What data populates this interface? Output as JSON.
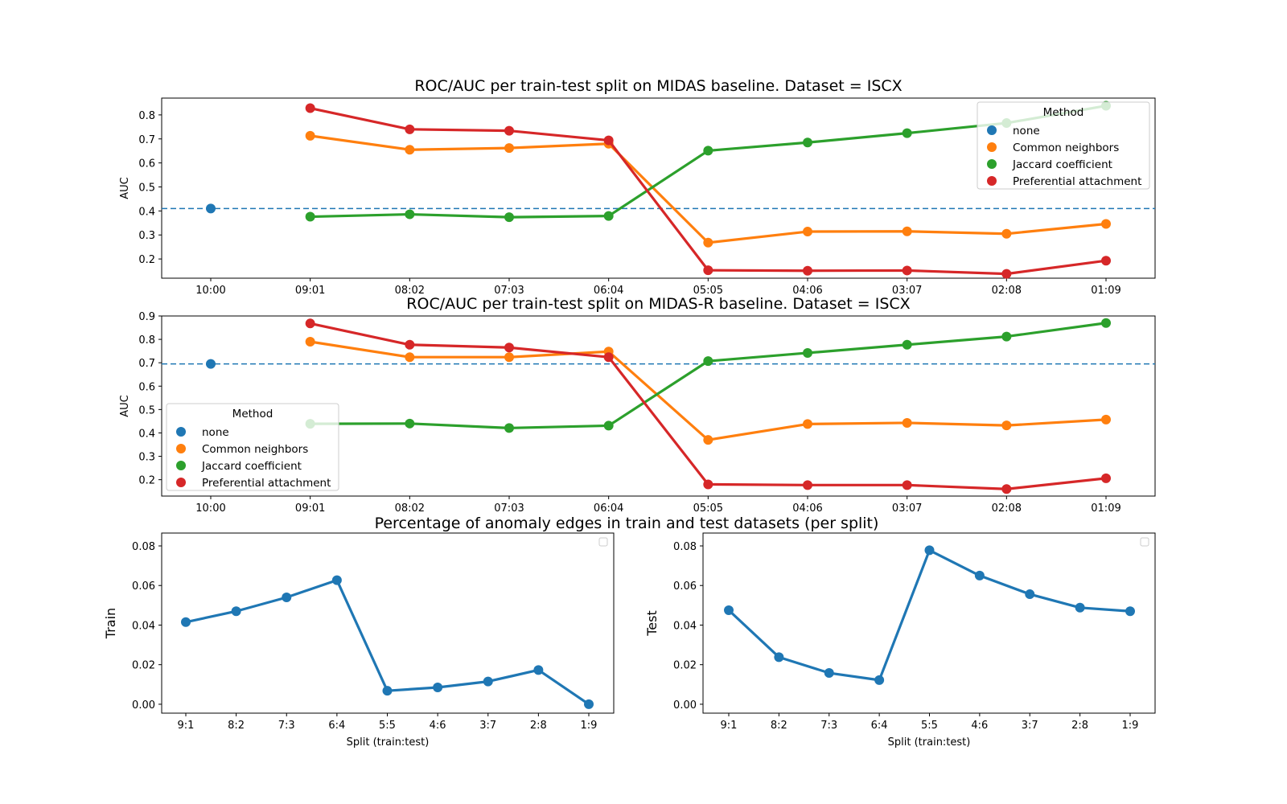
{
  "figure_titles": {
    "bottom_suptitle": "Percentage of anomaly edges in train and test datasets (per split)"
  },
  "colors": {
    "none": "#1f77b4",
    "Common neighbors": "#ff7f0e",
    "Jaccard coefficient": "#2ca02c",
    "Preferential attachment": "#d62728"
  },
  "chart_data": [
    {
      "id": "midas",
      "type": "line",
      "title": "ROC/AUC per train-test split on MIDAS baseline. Dataset = ISCX",
      "xlabel": "",
      "ylabel": "AUC",
      "categories": [
        "10:00",
        "09:01",
        "08:02",
        "07:03",
        "06:04",
        "05:05",
        "04:06",
        "03:07",
        "02:08",
        "01:09"
      ],
      "ylim": [
        0.12,
        0.87
      ],
      "yticks": [
        "0.2",
        "0.3",
        "0.4",
        "0.5",
        "0.6",
        "0.7",
        "0.8"
      ],
      "baseline": {
        "name": "none",
        "value": 0.41,
        "style": "dashed"
      },
      "legend": {
        "title": "Method",
        "position": "upper right",
        "entries": [
          "none",
          "Common neighbors",
          "Jaccard coefficient",
          "Preferential attachment"
        ]
      },
      "series": [
        {
          "name": "none",
          "values": [
            0.41,
            null,
            null,
            null,
            null,
            null,
            null,
            null,
            null,
            null
          ]
        },
        {
          "name": "Common neighbors",
          "values": [
            null,
            0.713,
            0.655,
            0.662,
            0.68,
            0.268,
            0.314,
            0.315,
            0.305,
            0.346
          ]
        },
        {
          "name": "Jaccard coefficient",
          "values": [
            null,
            0.376,
            0.386,
            0.374,
            0.379,
            0.651,
            0.685,
            0.724,
            0.766,
            0.838
          ]
        },
        {
          "name": "Preferential attachment",
          "values": [
            null,
            0.828,
            0.74,
            0.734,
            0.694,
            0.153,
            0.151,
            0.152,
            0.138,
            0.193
          ]
        }
      ]
    },
    {
      "id": "midas_r",
      "type": "line",
      "title": "ROC/AUC per train-test split on MIDAS-R baseline. Dataset = ISCX",
      "xlabel": "",
      "ylabel": "AUC",
      "categories": [
        "10:00",
        "09:01",
        "08:02",
        "07:03",
        "06:04",
        "05:05",
        "04:06",
        "03:07",
        "02:08",
        "01:09"
      ],
      "ylim": [
        0.13,
        0.9
      ],
      "yticks": [
        "0.2",
        "0.3",
        "0.4",
        "0.5",
        "0.6",
        "0.7",
        "0.8",
        "0.9"
      ],
      "baseline": {
        "name": "none",
        "value": 0.695,
        "style": "dashed"
      },
      "legend": {
        "title": "Method",
        "position": "lower left",
        "entries": [
          "none",
          "Common neighbors",
          "Jaccard coefficient",
          "Preferential attachment"
        ]
      },
      "series": [
        {
          "name": "none",
          "values": [
            0.695,
            null,
            null,
            null,
            null,
            null,
            null,
            null,
            null,
            null
          ]
        },
        {
          "name": "Common neighbors",
          "values": [
            null,
            0.79,
            0.724,
            0.724,
            0.748,
            0.37,
            0.438,
            0.443,
            0.432,
            0.457
          ]
        },
        {
          "name": "Jaccard coefficient",
          "values": [
            null,
            0.439,
            0.44,
            0.421,
            0.431,
            0.707,
            0.742,
            0.777,
            0.812,
            0.87
          ]
        },
        {
          "name": "Preferential attachment",
          "values": [
            null,
            0.868,
            0.777,
            0.765,
            0.724,
            0.18,
            0.177,
            0.177,
            0.16,
            0.206
          ]
        }
      ]
    },
    {
      "id": "train",
      "type": "line",
      "title": "",
      "xlabel": "Split (train:test)",
      "ylabel": "Train",
      "categories": [
        "9:1",
        "8:2",
        "7:3",
        "6:4",
        "5:5",
        "4:6",
        "3:7",
        "2:8",
        "1:9"
      ],
      "ylim": [
        -0.0045,
        0.0865
      ],
      "yticks": [
        "0.00",
        "0.02",
        "0.04",
        "0.06",
        "0.08"
      ],
      "legend": {
        "position": "upper right",
        "entries": []
      },
      "series": [
        {
          "values": [
            0.0415,
            0.047,
            0.054,
            0.0627,
            0.0068,
            0.0085,
            0.0115,
            0.0173,
            0.0
          ]
        }
      ]
    },
    {
      "id": "test",
      "type": "line",
      "title": "",
      "xlabel": "Split (train:test)",
      "ylabel": "Test",
      "categories": [
        "9:1",
        "8:2",
        "7:3",
        "6:4",
        "5:5",
        "4:6",
        "3:7",
        "2:8",
        "1:9"
      ],
      "ylim": [
        -0.0045,
        0.0865
      ],
      "yticks": [
        "0.00",
        "0.02",
        "0.04",
        "0.06",
        "0.08"
      ],
      "legend": {
        "position": "upper right",
        "entries": []
      },
      "series": [
        {
          "values": [
            0.0475,
            0.0238,
            0.0158,
            0.0122,
            0.0778,
            0.065,
            0.0556,
            0.0488,
            0.047
          ]
        }
      ]
    }
  ]
}
